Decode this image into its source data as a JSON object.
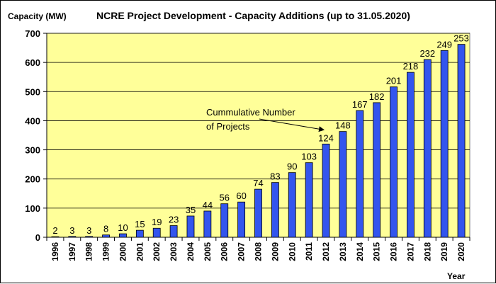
{
  "colors": {
    "plot_background": "#ffff99",
    "bar": "#3355ee",
    "bar_outline": "#000000",
    "grid": "#000000",
    "page_background": "#ffffff"
  },
  "chart_data": {
    "type": "bar",
    "title": "NCRE Project Development - Capacity Additions (up to 31.05.2020)",
    "ylabel": "Capacity (MW)",
    "xlabel": "Year",
    "ylim": [
      0,
      700
    ],
    "yticks": [
      0,
      100,
      200,
      300,
      400,
      500,
      600,
      700
    ],
    "grid": true,
    "categories": [
      "1996",
      "1997",
      "1998",
      "1999",
      "2000",
      "2001",
      "2002",
      "2003",
      "2004",
      "2005",
      "2006",
      "2007",
      "2008",
      "2009",
      "2010",
      "2011",
      "2012",
      "2013",
      "2014",
      "2015",
      "2016",
      "2017",
      "2018",
      "2019",
      "2020"
    ],
    "series": [
      {
        "values": [
          2,
          3,
          3,
          8,
          12,
          24,
          31,
          40,
          73,
          90,
          115,
          121,
          165,
          188,
          222,
          256,
          320,
          363,
          435,
          462,
          516,
          566,
          610,
          641,
          662
        ]
      }
    ],
    "data_labels": [
      "2",
      "3",
      "3",
      "8",
      "10",
      "15",
      "19",
      "23",
      "35",
      "44",
      "56",
      "60",
      "74",
      "83",
      "90",
      "103",
      "124",
      "148",
      "167",
      "182",
      "201",
      "218",
      "232",
      "249",
      "253"
    ],
    "annotation": {
      "lines": [
        "Cummulative Number",
        "of Projects"
      ],
      "arrow_to_category": "2012"
    }
  }
}
